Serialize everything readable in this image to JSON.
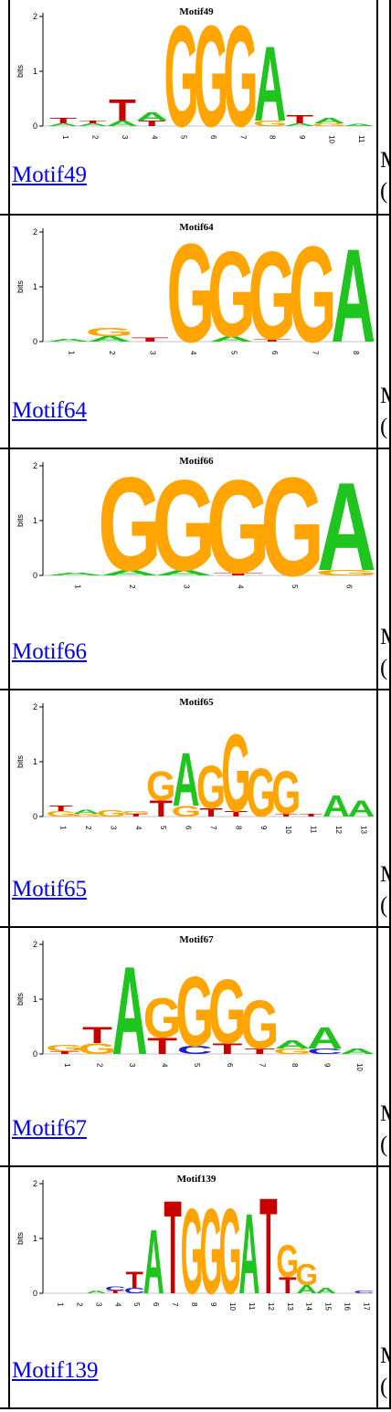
{
  "colors": {
    "A": "#1fc41f",
    "C": "#1d1dd6",
    "G": "#ffa400",
    "T": "#c80000",
    "link": "#0000ee"
  },
  "logo_labels": {
    "ylabel": "bits",
    "yticks": [
      "0",
      "1",
      "2"
    ]
  },
  "rows": [
    {
      "title": "Motif49",
      "link": "Motif49",
      "clip1": "M",
      "clip2": "(",
      "positions": 11,
      "letters": [
        [
          "A",
          "T"
        ],
        [
          "A",
          "T"
        ],
        [
          "T",
          "A"
        ],
        [
          "A",
          "T"
        ],
        [
          "G"
        ],
        [
          "G"
        ],
        [
          "G"
        ],
        [
          "A",
          "G"
        ],
        [
          "T",
          "A"
        ],
        [
          "A",
          "G"
        ],
        [
          "A"
        ]
      ],
      "heights": [
        [
          0.05,
          0.1
        ],
        [
          0.05,
          0.05
        ],
        [
          0.4,
          0.1
        ],
        [
          0.15,
          0.1
        ],
        [
          1.9
        ],
        [
          1.9
        ],
        [
          1.9
        ],
        [
          1.4,
          0.1
        ],
        [
          0.15,
          0.05
        ],
        [
          0.1,
          0.05
        ],
        [
          0.04
        ]
      ]
    },
    {
      "title": "Motif64",
      "link": "Motif64",
      "clip1": "M",
      "clip2": "(",
      "positions": 8,
      "letters": [
        [
          "A"
        ],
        [
          "G",
          "A"
        ],
        [
          "T"
        ],
        [
          "G"
        ],
        [
          "G",
          "A"
        ],
        [
          "G",
          "T"
        ],
        [
          "G"
        ],
        [
          "A"
        ]
      ],
      "heights": [
        [
          0.05
        ],
        [
          0.15,
          0.1
        ],
        [
          0.08
        ],
        [
          1.85
        ],
        [
          1.6,
          0.1
        ],
        [
          1.65,
          0.05
        ],
        [
          1.8
        ],
        [
          1.75
        ]
      ]
    },
    {
      "title": "Motif66",
      "link": "Motif66",
      "clip1": "M",
      "clip2": "(",
      "positions": 6,
      "letters": [
        [
          "A"
        ],
        [
          "G",
          "A"
        ],
        [
          "G",
          "A"
        ],
        [
          "G",
          "T"
        ],
        [
          "G"
        ],
        [
          "A",
          "G"
        ]
      ],
      "heights": [
        [
          0.05
        ],
        [
          1.75,
          0.1
        ],
        [
          1.7,
          0.1
        ],
        [
          1.75,
          0.05
        ],
        [
          1.85
        ],
        [
          1.65,
          0.1
        ]
      ]
    },
    {
      "title": "Motif65",
      "link": "Motif65",
      "clip1": "M",
      "clip2": "(",
      "positions": 13,
      "letters": [
        [
          "G",
          "T"
        ],
        [
          "G",
          "A"
        ],
        [
          "G"
        ],
        [
          "T",
          "G"
        ],
        [
          "T",
          "G"
        ],
        [
          "A",
          "G"
        ],
        [
          "G",
          "T"
        ],
        [
          "G",
          "T"
        ],
        [
          "G"
        ],
        [
          "G",
          "T"
        ],
        [
          "T"
        ],
        [
          "A"
        ],
        [
          "A"
        ]
      ],
      "heights": [
        [
          0.1,
          0.1
        ],
        [
          0.05,
          0.08
        ],
        [
          0.12
        ],
        [
          0.05,
          0.05
        ],
        [
          0.3,
          0.55
        ],
        [
          1.0,
          0.2
        ],
        [
          0.8,
          0.15
        ],
        [
          1.45,
          0.1
        ],
        [
          0.9
        ],
        [
          0.8,
          0.05
        ],
        [
          0.05
        ],
        [
          0.4
        ],
        [
          0.3
        ]
      ]
    },
    {
      "title": "Motif67",
      "link": "Motif67",
      "clip1": "M",
      "clip2": "(",
      "positions": 10,
      "letters": [
        [
          "G",
          "T"
        ],
        [
          "T",
          "G"
        ],
        [
          "A"
        ],
        [
          "T",
          "G"
        ],
        [
          "G",
          "C"
        ],
        [
          "G",
          "T"
        ],
        [
          "G",
          "T"
        ],
        [
          "G",
          "A"
        ],
        [
          "A",
          "C"
        ],
        [
          "A"
        ]
      ],
      "heights": [
        [
          0.12,
          0.05
        ],
        [
          0.3,
          0.2
        ],
        [
          1.65
        ],
        [
          0.3,
          0.75
        ],
        [
          1.3,
          0.15
        ],
        [
          1.2,
          0.2
        ],
        [
          0.9,
          0.1
        ],
        [
          0.1,
          0.15
        ],
        [
          0.4,
          0.1
        ],
        [
          0.1
        ]
      ]
    },
    {
      "title": "Motif139",
      "link": "Motif139",
      "clip1": "M",
      "clip2": "(",
      "positions": 17,
      "letters": [
        [],
        [],
        [
          "A"
        ],
        [
          "C",
          "T"
        ],
        [
          "T",
          "C"
        ],
        [
          "A"
        ],
        [
          "T"
        ],
        [
          "G"
        ],
        [
          "G"
        ],
        [
          "G"
        ],
        [
          "A"
        ],
        [
          "T"
        ],
        [
          "G",
          "T"
        ],
        [
          "G",
          "A"
        ],
        [
          "A"
        ],
        [],
        [
          "C"
        ]
      ],
      "heights": [
        [],
        [],
        [
          0.05
        ],
        [
          0.08,
          0.05
        ],
        [
          0.3,
          0.1
        ],
        [
          1.2
        ],
        [
          1.75
        ],
        [
          1.6
        ],
        [
          1.6
        ],
        [
          1.6
        ],
        [
          1.5
        ],
        [
          1.8
        ],
        [
          0.6,
          0.3
        ],
        [
          0.4,
          0.15
        ],
        [
          0.1
        ],
        [],
        [
          0.05
        ]
      ]
    }
  ]
}
